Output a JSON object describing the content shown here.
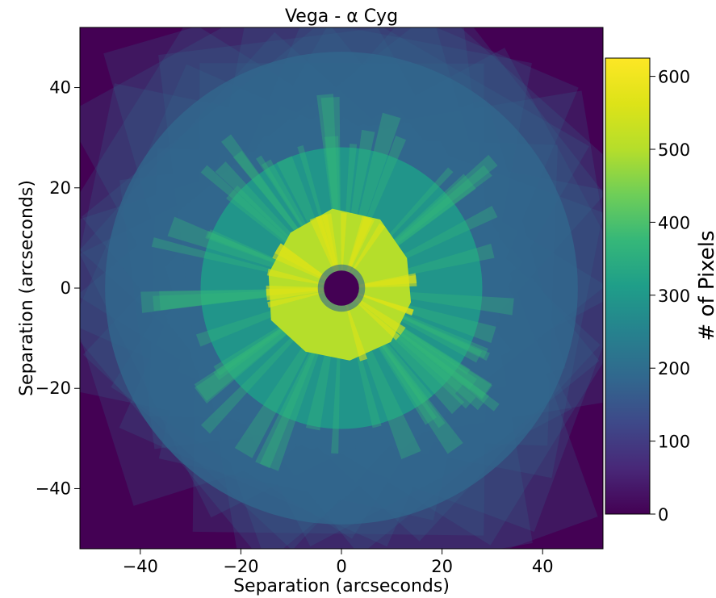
{
  "chart_data": {
    "type": "heatmap",
    "title": "Vega - α Cyg",
    "xlabel": "Separation (arcseconds)",
    "ylabel": "Separation (arcseconds)",
    "xlim": [
      -52,
      52
    ],
    "ylim": [
      -52,
      52
    ],
    "xticks": [
      -40,
      -20,
      0,
      20,
      40
    ],
    "yticks": [
      -40,
      -20,
      0,
      20,
      40
    ],
    "xtick_labels": [
      "−40",
      "−20",
      "0",
      "20",
      "40"
    ],
    "ytick_labels": [
      "−40",
      "−20",
      "0",
      "20",
      "40"
    ],
    "colorbar": {
      "label": "# of Pixels",
      "range": [
        0,
        625
      ],
      "ticks": [
        0,
        100,
        200,
        300,
        400,
        500,
        600
      ],
      "tick_labels": [
        "0",
        "100",
        "200",
        "300",
        "400",
        "500",
        "600"
      ],
      "colormap": "viridis"
    },
    "features": {
      "central_mask_radius": 3.5,
      "inner_bright_region_radius": 15,
      "inner_bright_region_value": 480,
      "mid_region_radius": 28,
      "mid_region_value": 330,
      "outer_region_radius": 47,
      "outer_region_value": 160,
      "background_value": 0
    }
  }
}
